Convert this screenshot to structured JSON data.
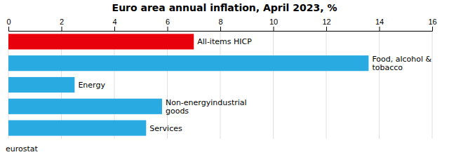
{
  "chart_data": {
    "type": "bar",
    "orientation": "horizontal",
    "title": "Euro area annual inflation, April 2023, %",
    "categories": [
      "All-items HICP",
      "Food, alcohol &\ntobacco",
      "Energy",
      "Non-energyindustrial\ngoods",
      "Services"
    ],
    "values": [
      7.0,
      13.6,
      2.5,
      5.8,
      5.2
    ],
    "colors": [
      "#e8000d",
      "#29abe2",
      "#29abe2",
      "#29abe2",
      "#29abe2"
    ],
    "xlim": [
      0,
      16
    ],
    "xticks": [
      0,
      2,
      4,
      6,
      8,
      10,
      12,
      14,
      16
    ],
    "grid": true,
    "tick_labels": "x",
    "annotations": [
      "eurostat"
    ]
  }
}
